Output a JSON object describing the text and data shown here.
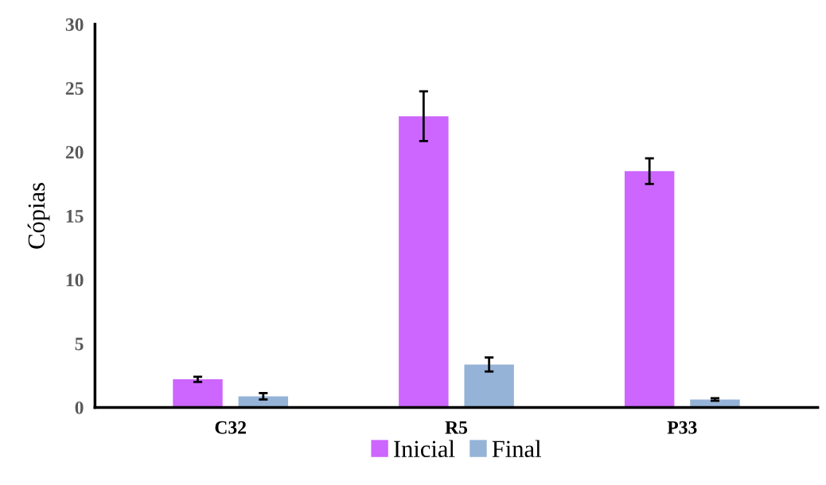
{
  "chart_data": {
    "type": "bar",
    "ylabel": "Cópias",
    "categories": [
      "C32",
      "R5",
      "P33"
    ],
    "series": [
      {
        "name": "Inicial",
        "color": "#cc66ff",
        "values": [
          2.2,
          22.8,
          18.5
        ],
        "errors": [
          0.2,
          1.95,
          1.0
        ]
      },
      {
        "name": "Final",
        "color": "#95b3d7",
        "values": [
          0.87,
          3.36,
          0.62
        ],
        "errors": [
          0.25,
          0.55,
          0.1
        ]
      }
    ],
    "ylim": [
      0,
      30
    ],
    "yticks": [
      0,
      5,
      10,
      15,
      20,
      25,
      30
    ],
    "grid": false,
    "legend": "bottom"
  }
}
